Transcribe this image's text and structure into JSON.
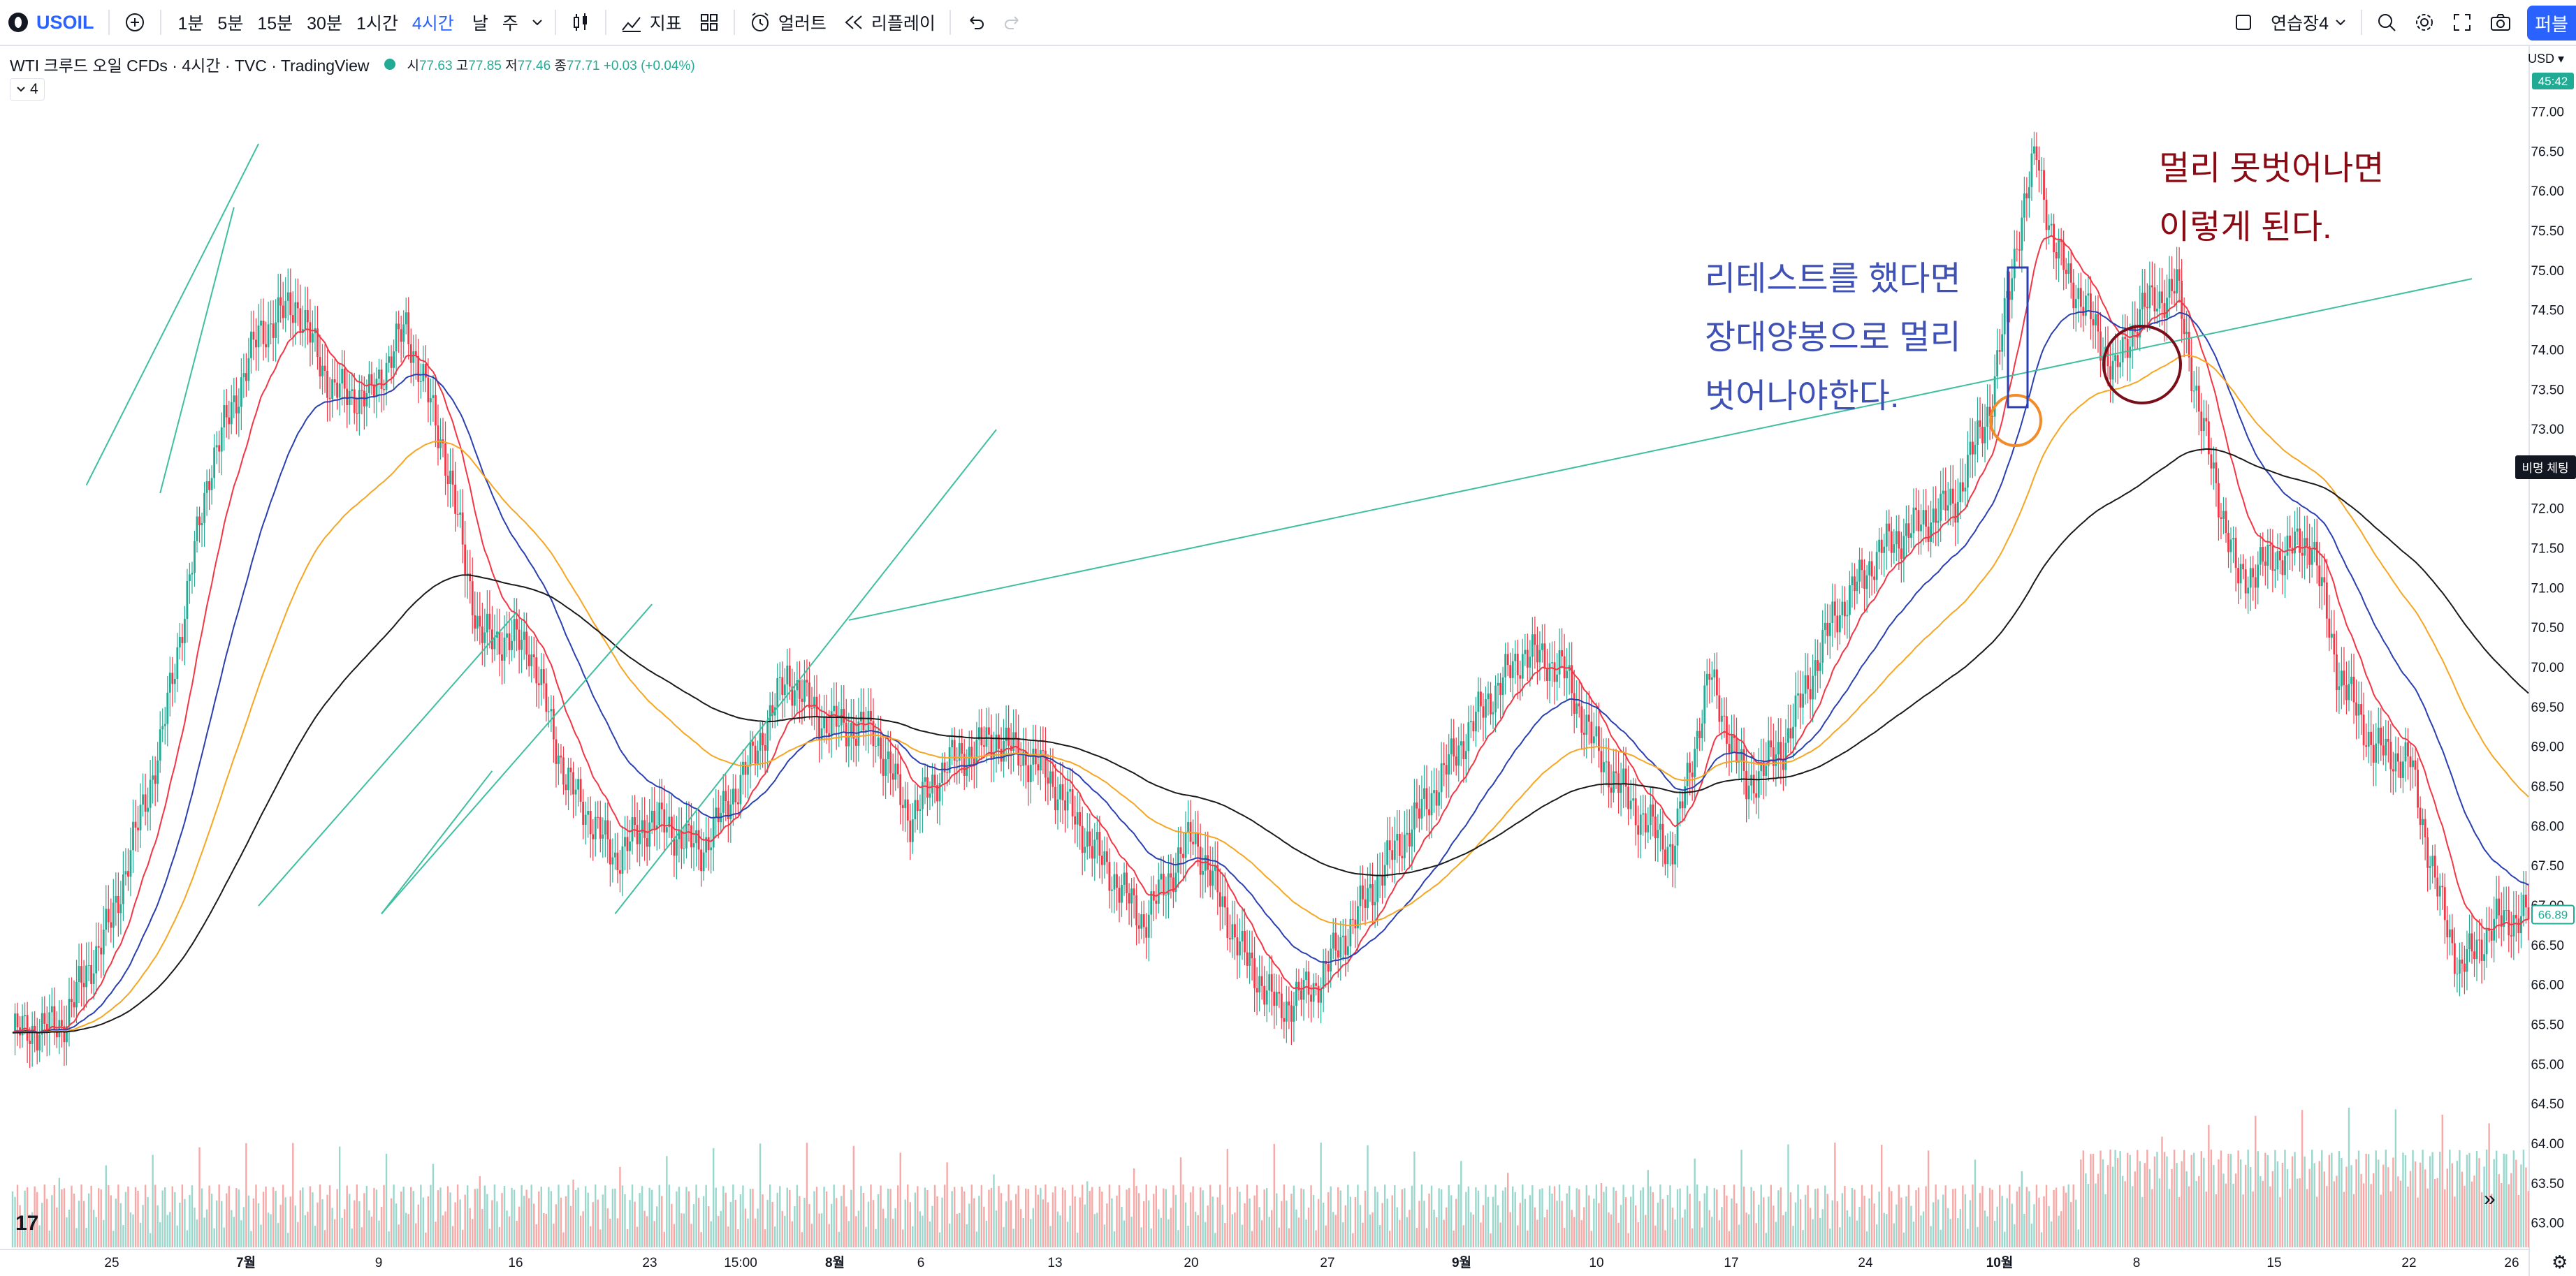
{
  "toolbar": {
    "symbol": "USOIL",
    "intervals": [
      "1분",
      "5분",
      "15분",
      "30분",
      "1시간",
      "4시간"
    ],
    "active_interval": "4시간",
    "extra_intervals": [
      "날",
      "주"
    ],
    "indicators_label": "지표",
    "alerts_label": "얼러트",
    "replay_label": "리플레이",
    "layout_name": "연습장4",
    "publish_label": "퍼블"
  },
  "legend": {
    "title": "WTI 크루드 오일 CFDs · 4시간 · TVC · TradingView",
    "open_label": "시",
    "open": "77.63",
    "high_label": "고",
    "high": "77.85",
    "low_label": "저",
    "low": "77.46",
    "close_label": "종",
    "close": "77.71",
    "change": "+0.03 (+0.04%)",
    "collapse_count": "4"
  },
  "price_axis": {
    "currency": "USD",
    "top_tag": "45:42",
    "last_price_tag": "66.89",
    "hover_label": "비명 체팅",
    "ticks": [
      "77.00",
      "76.50",
      "76.00",
      "75.50",
      "75.00",
      "74.50",
      "74.00",
      "73.50",
      "73.00",
      "72.50",
      "72.00",
      "71.50",
      "71.00",
      "70.50",
      "70.00",
      "69.50",
      "69.00",
      "68.50",
      "68.00",
      "67.50",
      "67.00",
      "66.50",
      "66.00",
      "65.50",
      "65.00",
      "64.50",
      "64.00",
      "63.50",
      "63.00"
    ]
  },
  "time_axis": {
    "labels": [
      "25",
      "7월",
      "9",
      "16",
      "23",
      "15:00",
      "8월",
      "6",
      "13",
      "20",
      "27",
      "9월",
      "10",
      "17",
      "24",
      "10월",
      "8",
      "15",
      "22",
      "26"
    ]
  },
  "annotations": {
    "blue_lines": [
      "리테스트를 했다면",
      "장대양봉으로 멀리",
      "벗어나야한다."
    ],
    "red_lines": [
      "멀리 못벗어나면",
      "이렇게 된다."
    ]
  },
  "colors": {
    "up": "#22ab94",
    "down": "#f23645",
    "ema_red": "#f23645",
    "ema_blue": "#2a3fb0",
    "ema_orange": "#f5a623",
    "ema_black": "#1a1a1a",
    "trendline": "#3fbf9f",
    "annotation_blue": "#3f51b5",
    "annotation_red": "#8b0a14",
    "circle_orange": "#f08c2a",
    "circle_darkred": "#7a0d1a"
  },
  "chart_data": {
    "type": "candlestick",
    "symbol": "USOIL",
    "interval": "4시간",
    "ylim": [
      62.9,
      77.4
    ],
    "close_path_anchors": [
      [
        0,
        65.4
      ],
      [
        20,
        65.5
      ],
      [
        40,
        66.8
      ],
      [
        60,
        69.0
      ],
      [
        80,
        72.5
      ],
      [
        100,
        74.2
      ],
      [
        115,
        74.6
      ],
      [
        130,
        73.5
      ],
      [
        145,
        73.4
      ],
      [
        160,
        74.3
      ],
      [
        175,
        72.8
      ],
      [
        190,
        70.4
      ],
      [
        210,
        70.3
      ],
      [
        225,
        68.6
      ],
      [
        245,
        67.6
      ],
      [
        260,
        68.1
      ],
      [
        280,
        67.7
      ],
      [
        300,
        68.8
      ],
      [
        315,
        69.9
      ],
      [
        330,
        69.3
      ],
      [
        350,
        69.2
      ],
      [
        365,
        68.1
      ],
      [
        380,
        68.8
      ],
      [
        400,
        69.1
      ],
      [
        420,
        68.7
      ],
      [
        440,
        67.7
      ],
      [
        460,
        66.8
      ],
      [
        480,
        67.9
      ],
      [
        500,
        66.4
      ],
      [
        515,
        65.7
      ],
      [
        530,
        66.0
      ],
      [
        545,
        66.8
      ],
      [
        560,
        67.6
      ],
      [
        575,
        68.3
      ],
      [
        590,
        69.1
      ],
      [
        600,
        69.6
      ],
      [
        615,
        70.2
      ],
      [
        630,
        70.0
      ],
      [
        645,
        68.9
      ],
      [
        660,
        68.2
      ],
      [
        675,
        67.7
      ],
      [
        690,
        69.9
      ],
      [
        705,
        68.5
      ],
      [
        720,
        69.0
      ],
      [
        740,
        70.6
      ],
      [
        760,
        71.5
      ],
      [
        775,
        71.8
      ],
      [
        790,
        72.1
      ],
      [
        805,
        73.4
      ],
      [
        815,
        75.4
      ],
      [
        823,
        76.5
      ],
      [
        830,
        75.3
      ],
      [
        845,
        74.4
      ],
      [
        855,
        73.7
      ],
      [
        865,
        74.5
      ],
      [
        880,
        74.8
      ],
      [
        890,
        73.1
      ],
      [
        905,
        71.1
      ],
      [
        920,
        71.4
      ],
      [
        935,
        71.6
      ],
      [
        945,
        70.0
      ],
      [
        960,
        69.0
      ],
      [
        975,
        68.8
      ],
      [
        985,
        67.3
      ],
      [
        995,
        66.2
      ],
      [
        1010,
        66.8
      ],
      [
        1023,
        66.89
      ]
    ],
    "moving_averages": [
      {
        "name": "",
        "color": "#f23645"
      },
      {
        "name": "",
        "color": "#2a3fb0"
      },
      {
        "name": "",
        "color": "#f5a623"
      },
      {
        "name": "",
        "color": "#1a1a1a"
      }
    ]
  }
}
